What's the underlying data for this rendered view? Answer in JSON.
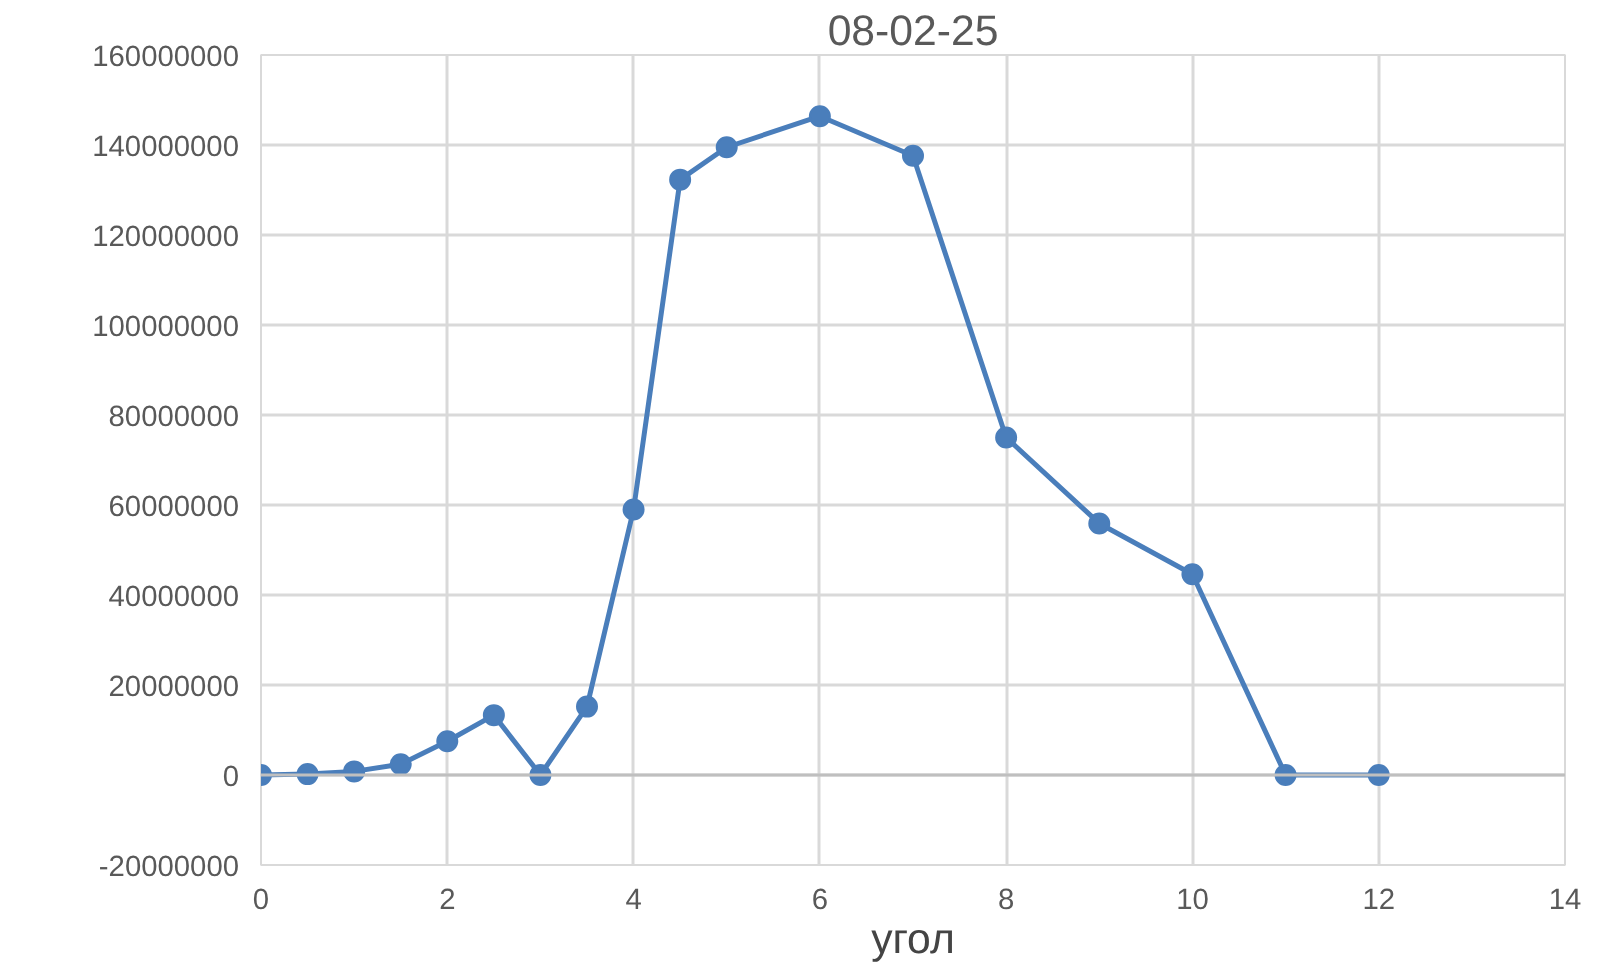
{
  "chart_data": {
    "type": "line",
    "title": "08-02-25",
    "xlabel": "угол",
    "x": [
      0,
      0.5,
      1,
      1.5,
      2,
      2.5,
      3,
      3.5,
      4,
      4.5,
      5,
      6,
      7,
      8,
      9,
      10,
      11,
      12
    ],
    "series": [
      {
        "color": "#4a7ebb",
        "values": [
          0,
          200000,
          800000,
          2400000,
          7500000,
          13300000,
          0,
          15200000,
          59000000,
          132300000,
          139500000,
          146400000,
          137600000,
          75000000,
          55900000,
          44600000,
          0,
          0
        ]
      }
    ],
    "xlim": [
      0,
      14
    ],
    "xticks": [
      0,
      2,
      4,
      6,
      8,
      10,
      12,
      14
    ],
    "ylim": [
      -20000000,
      160000000
    ],
    "yticks": [
      -20000000,
      0,
      20000000,
      40000000,
      60000000,
      80000000,
      100000000,
      120000000,
      140000000,
      160000000
    ],
    "grid": true,
    "marker": "circle",
    "line_style": "solid"
  }
}
